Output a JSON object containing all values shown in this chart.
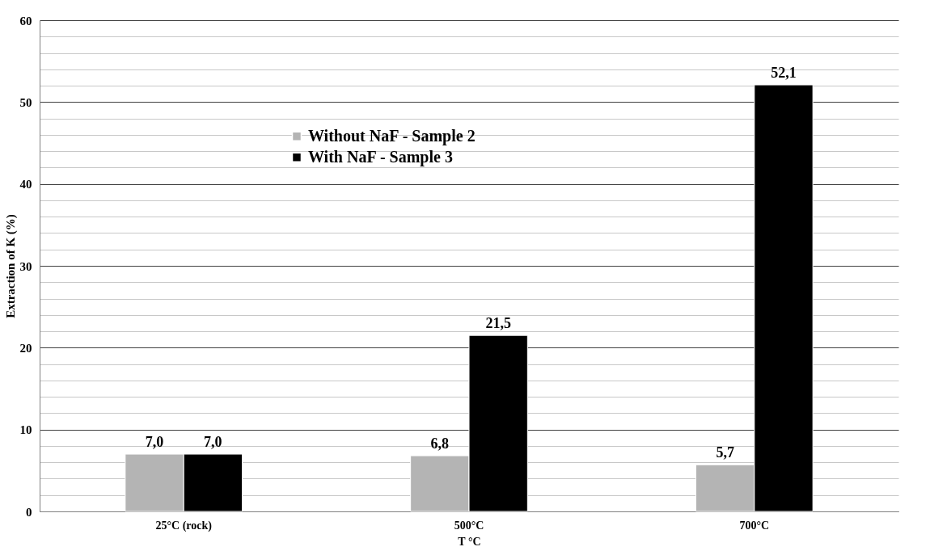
{
  "chart_data": {
    "type": "bar",
    "xlabel": "T °C",
    "ylabel": "Extraction of K (%)",
    "categories": [
      "25°C (rock)",
      "500°C",
      "700°C"
    ],
    "series": [
      {
        "name": "Without NaF - Sample 2",
        "color": "#b4b4b4",
        "values": [
          7.0,
          6.8,
          5.7
        ],
        "value_labels": [
          "7,0",
          "6,8",
          "5,7"
        ]
      },
      {
        "name": "With NaF - Sample 3",
        "color": "#000000",
        "values": [
          7.0,
          21.5,
          52.1
        ],
        "value_labels": [
          "7,0",
          "21,5",
          "52,1"
        ]
      }
    ],
    "ylim": [
      0,
      60
    ],
    "yticks": [
      0,
      {
        "value": 2,
        "label": null
      },
      {
        "value": 4,
        "label": null
      },
      {
        "value": 6,
        "label": null
      },
      {
        "value": 8,
        "label": null
      },
      10,
      {
        "value": 12,
        "label": null
      },
      {
        "value": 14,
        "label": null
      },
      {
        "value": 16,
        "label": null
      },
      {
        "value": 18,
        "label": null
      },
      20,
      {
        "value": 22,
        "label": null
      },
      {
        "value": 24,
        "label": null
      },
      {
        "value": 26,
        "label": null
      },
      {
        "value": 28,
        "label": null
      },
      30,
      {
        "value": 32,
        "label": null
      },
      {
        "value": 34,
        "label": null
      },
      {
        "value": 36,
        "label": null
      },
      {
        "value": 38,
        "label": null
      },
      40,
      {
        "value": 42,
        "label": null
      },
      {
        "value": 44,
        "label": null
      },
      {
        "value": 46,
        "label": null
      },
      {
        "value": 48,
        "label": null
      },
      50,
      {
        "value": 52,
        "label": null
      },
      {
        "value": 54,
        "label": null
      },
      {
        "value": 56,
        "label": null
      },
      {
        "value": 58,
        "label": null
      },
      60
    ],
    "grid": "y",
    "legend": "top left"
  }
}
